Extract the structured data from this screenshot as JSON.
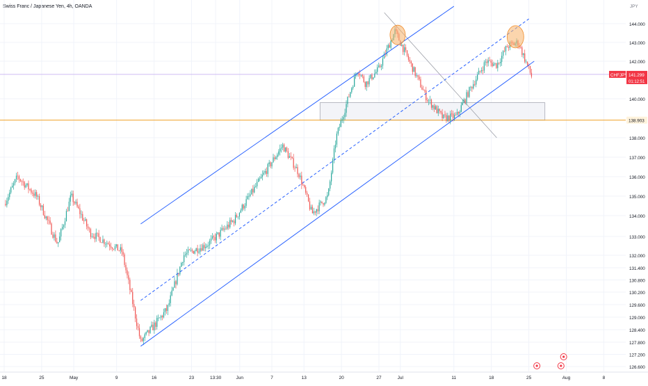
{
  "chart_data": {
    "type": "candlestick",
    "title": "Swiss Franc / Japanese Yen, 4h, OANDA",
    "symbol": "CHFJPY",
    "last_price": "141.299",
    "countdown": "01:12:51",
    "horizontal_level": {
      "value": "138.903",
      "color": "#f0a020"
    },
    "currency_label": "JPY",
    "y_ticks": [
      {
        "label": "144.000",
        "v": 144
      },
      {
        "label": "143.000",
        "v": 143
      },
      {
        "label": "142.000",
        "v": 142
      },
      {
        "label": "140.000",
        "v": 140
      },
      {
        "label": "138.000",
        "v": 138
      },
      {
        "label": "137.000",
        "v": 137
      },
      {
        "label": "136.000",
        "v": 136
      },
      {
        "label": "135.000",
        "v": 135
      },
      {
        "label": "134.000",
        "v": 134
      },
      {
        "label": "133.000",
        "v": 133
      },
      {
        "label": "132.000",
        "v": 132
      },
      {
        "label": "131.400",
        "v": 131.4
      },
      {
        "label": "130.800",
        "v": 130.8
      },
      {
        "label": "130.200",
        "v": 130.2
      },
      {
        "label": "129.600",
        "v": 129.6
      },
      {
        "label": "129.000",
        "v": 129
      },
      {
        "label": "128.400",
        "v": 128.4
      },
      {
        "label": "127.800",
        "v": 127.8
      },
      {
        "label": "127.200",
        "v": 127.2
      },
      {
        "label": "126.600",
        "v": 126.6
      }
    ],
    "x_ticks": [
      {
        "label": "18",
        "d": 0
      },
      {
        "label": "25",
        "d": 7
      },
      {
        "label": "May",
        "d": 13
      },
      {
        "label": "9",
        "d": 21
      },
      {
        "label": "16",
        "d": 28
      },
      {
        "label": "23",
        "d": 35
      },
      {
        "label": "13:30",
        "d": 39.5
      },
      {
        "label": "Jun",
        "d": 44
      },
      {
        "label": "7",
        "d": 50
      },
      {
        "label": "13",
        "d": 56
      },
      {
        "label": "20",
        "d": 63
      },
      {
        "label": "27",
        "d": 70
      },
      {
        "label": "Jul",
        "d": 74
      },
      {
        "label": "11",
        "d": 84
      },
      {
        "label": "18",
        "d": 91
      },
      {
        "label": "25",
        "d": 98
      },
      {
        "label": "Aug",
        "d": 105
      },
      {
        "label": "8",
        "d": 112
      }
    ],
    "ohlc_path": [
      [
        0,
        134.6
      ],
      [
        2.5,
        136.0
      ],
      [
        6,
        135.0
      ],
      [
        10,
        132.6
      ],
      [
        12.5,
        135.0
      ],
      [
        16,
        133.2
      ],
      [
        22,
        132.2
      ],
      [
        25.5,
        127.8
      ],
      [
        30.5,
        129.4
      ],
      [
        33.5,
        132.0
      ],
      [
        38,
        132.6
      ],
      [
        43,
        133.8
      ],
      [
        47,
        135.5
      ],
      [
        52,
        137.6
      ],
      [
        55,
        136.2
      ],
      [
        57.5,
        134.1
      ],
      [
        60.5,
        135.0
      ],
      [
        62,
        138.0
      ],
      [
        66,
        141.6
      ],
      [
        67.5,
        140.8
      ],
      [
        70,
        141.6
      ],
      [
        73,
        143.6
      ],
      [
        76,
        141.8
      ],
      [
        79,
        140.0
      ],
      [
        82,
        139.0
      ],
      [
        84.5,
        139.1
      ],
      [
        87,
        140.5
      ],
      [
        90,
        142.0
      ],
      [
        92,
        141.8
      ],
      [
        94,
        142.8
      ],
      [
        96,
        143.0
      ],
      [
        97,
        142.3
      ],
      [
        98.5,
        141.2
      ]
    ],
    "bull_color": "#26a69a",
    "bear_color": "#ef5350",
    "annotations": {
      "channel_color": "#2962ff",
      "channel_upper": [
        [
          25.5,
          133.6
        ],
        [
          84,
          145.1
        ]
      ],
      "channel_mid": [
        [
          25.5,
          129.8
        ],
        [
          98,
          144.3
        ]
      ],
      "channel_lower": [
        [
          25.5,
          127.6
        ],
        [
          99,
          142.0
        ]
      ],
      "diagonal": [
        [
          71,
          144.7
        ],
        [
          92,
          138.0
        ]
      ],
      "zone": {
        "d0": 59,
        "d1": 101,
        "v0": 138.9,
        "v1": 139.8
      },
      "circles": [
        {
          "d": 73.5,
          "v": 143.4
        },
        {
          "d": 95.5,
          "v": 143.3
        }
      ],
      "circle_fill": "#f7b26a",
      "event_icons": [
        {
          "d": 99.5
        },
        {
          "d": 104
        },
        {
          "d": 104.5
        }
      ]
    }
  }
}
